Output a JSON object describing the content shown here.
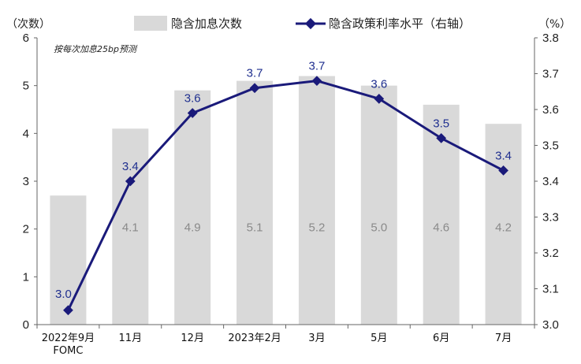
{
  "chart_data": {
    "type": "bar",
    "categories": [
      "2022年9月\nFOMC",
      "11月",
      "12月",
      "2023年2月",
      "3月",
      "5月",
      "6月",
      "7月"
    ],
    "series": [
      {
        "name": "隐含加息次数",
        "kind": "bar",
        "axis": "left",
        "values": [
          2.7,
          4.1,
          4.9,
          5.1,
          5.2,
          5.0,
          4.6,
          4.2
        ],
        "labels": [
          "",
          "4.1",
          "4.9",
          "5.1",
          "5.2",
          "5.0",
          "4.6",
          "4.2"
        ],
        "color": "#d9d9d9"
      },
      {
        "name": "隐含政策利率水平（右轴）",
        "kind": "line",
        "axis": "right",
        "values": [
          3.04,
          3.4,
          3.59,
          3.66,
          3.68,
          3.63,
          3.52,
          3.43
        ],
        "labels": [
          "3.0",
          "3.4",
          "3.6",
          "3.7",
          "3.7",
          "3.6",
          "3.5",
          "3.4"
        ],
        "color": "#1a1a7a"
      }
    ],
    "ylabel_left": "（次数）",
    "ylabel_right": "（%）",
    "ylim_left": [
      0,
      6
    ],
    "ylim_right": [
      3.0,
      3.8
    ],
    "yticks_left": [
      "0",
      "1",
      "2",
      "3",
      "4",
      "5",
      "6"
    ],
    "yticks_right": [
      "3.0",
      "3.1",
      "3.2",
      "3.3",
      "3.4",
      "3.5",
      "3.6",
      "3.7",
      "3.8"
    ],
    "annotation": "按每次加息25bp预测",
    "legend_position": "top",
    "grid": false
  }
}
